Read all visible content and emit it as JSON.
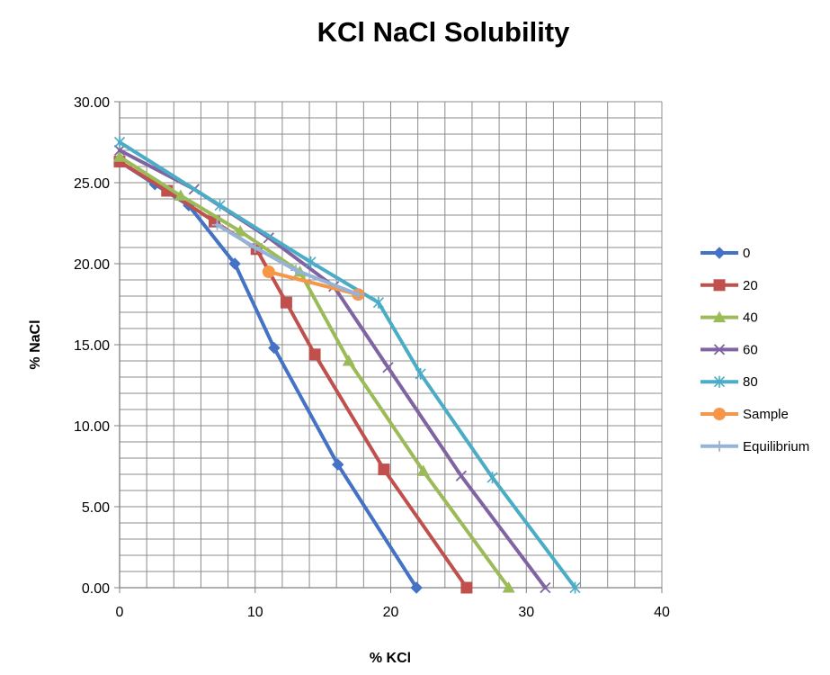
{
  "chart_data": {
    "type": "scatter",
    "title": "KCl NaCl Solubility",
    "xlabel": "% KCl",
    "ylabel": "% NaCl",
    "xlim": [
      0,
      40
    ],
    "ylim": [
      0,
      30
    ],
    "x_ticks": [
      "0",
      "10",
      "20",
      "30",
      "40"
    ],
    "y_ticks": [
      "0.00",
      "5.00",
      "10.00",
      "15.00",
      "20.00",
      "25.00",
      "30.00"
    ],
    "grid": true,
    "x_minor_step": 2,
    "y_minor_step": 1,
    "legend_position": "right",
    "series": [
      {
        "name": "0",
        "color": "#4472C4",
        "marker": "diamond",
        "points": [
          [
            0,
            26.3
          ],
          [
            2.6,
            24.9
          ],
          [
            5.1,
            23.6
          ],
          [
            8.5,
            20.0
          ],
          [
            11.4,
            14.8
          ],
          [
            16.1,
            7.6
          ],
          [
            21.9,
            0
          ]
        ]
      },
      {
        "name": "20",
        "color": "#C0504D",
        "marker": "square",
        "points": [
          [
            0,
            26.3
          ],
          [
            3.5,
            24.5
          ],
          [
            7.0,
            22.6
          ],
          [
            10.1,
            20.9
          ],
          [
            12.3,
            17.6
          ],
          [
            14.4,
            14.4
          ],
          [
            19.5,
            7.3
          ],
          [
            25.6,
            0
          ]
        ]
      },
      {
        "name": "40",
        "color": "#9BBB59",
        "marker": "triangle",
        "points": [
          [
            0,
            26.6
          ],
          [
            4.5,
            24.2
          ],
          [
            8.9,
            22.0
          ],
          [
            13.3,
            19.5
          ],
          [
            16.9,
            14.0
          ],
          [
            22.4,
            7.2
          ],
          [
            28.7,
            0
          ]
        ]
      },
      {
        "name": "60",
        "color": "#8064A2",
        "marker": "x",
        "points": [
          [
            0,
            27.0
          ],
          [
            5.5,
            24.6
          ],
          [
            11.0,
            21.6
          ],
          [
            15.8,
            18.6
          ],
          [
            19.8,
            13.6
          ],
          [
            25.2,
            6.9
          ],
          [
            31.4,
            0
          ]
        ]
      },
      {
        "name": "80",
        "color": "#4BACC6",
        "marker": "star",
        "points": [
          [
            0,
            27.5
          ],
          [
            7.4,
            23.6
          ],
          [
            14.1,
            20.1
          ],
          [
            19.1,
            17.6
          ],
          [
            22.2,
            13.2
          ],
          [
            27.5,
            6.8
          ],
          [
            33.6,
            0
          ]
        ]
      },
      {
        "name": "Sample",
        "color": "#F79646",
        "marker": "circle",
        "points": [
          [
            11.0,
            19.5
          ],
          [
            17.6,
            18.1
          ]
        ]
      },
      {
        "name": "Equilibrium",
        "color": "#95B3D7",
        "marker": "plus",
        "points": [
          [
            7.2,
            22.4
          ],
          [
            10.0,
            21.0
          ],
          [
            13.0,
            19.6
          ],
          [
            17.6,
            18.1
          ]
        ]
      }
    ]
  }
}
